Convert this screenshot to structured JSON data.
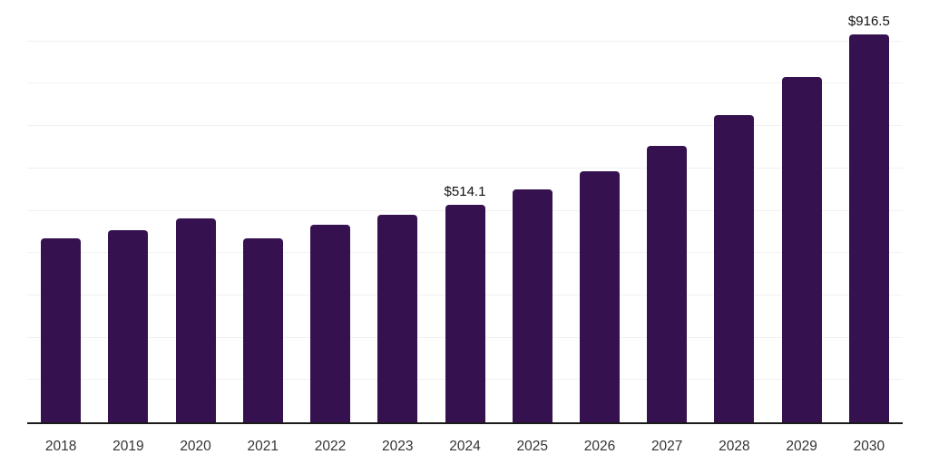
{
  "chart_data": {
    "type": "bar",
    "categories": [
      "2018",
      "2019",
      "2020",
      "2021",
      "2022",
      "2023",
      "2024",
      "2025",
      "2026",
      "2027",
      "2028",
      "2029",
      "2030"
    ],
    "values": [
      434.9,
      453.9,
      481.0,
      435.4,
      466.2,
      490.1,
      514.1,
      550.6,
      594.2,
      652.5,
      726.3,
      814.9,
      916.5
    ],
    "data_labels": [
      "",
      "",
      "",
      "",
      "",
      "",
      "$514.1",
      "",
      "",
      "",
      "",
      "",
      "$916.5"
    ],
    "xlabel": "",
    "ylabel": "",
    "ylim": [
      0,
      1000
    ],
    "gridline_step": 100,
    "grid": "horizontal",
    "legend": "none",
    "colors": {
      "bar": "#35124F",
      "gridline": "#F1F1F1",
      "axis_line": "#1A1A1A",
      "tick_label": "#333333",
      "value_label": "#111111",
      "background": "#FFFFFF"
    }
  }
}
